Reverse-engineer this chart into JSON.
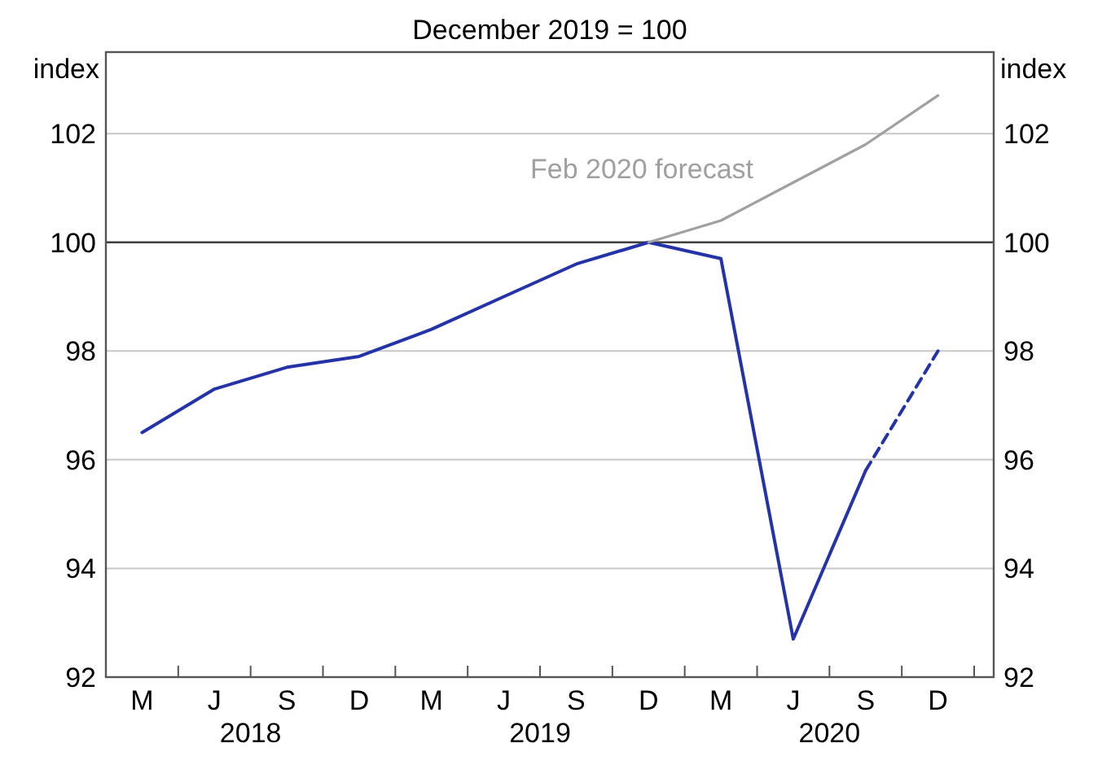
{
  "chart_data": {
    "type": "line",
    "subtitle": "December 2019 = 100",
    "ylabel": "index",
    "y2label": "index",
    "ylim": [
      92,
      103.5
    ],
    "yticks": [
      92,
      94,
      96,
      98,
      100,
      102
    ],
    "y2lim": [
      92,
      103.5
    ],
    "y2ticks": [
      92,
      94,
      96,
      98,
      100,
      102
    ],
    "categories": [
      "M",
      "J",
      "S",
      "D",
      "M",
      "J",
      "S",
      "D",
      "M",
      "J",
      "S",
      "D"
    ],
    "annotations": [
      "2018",
      "2019",
      "2020"
    ],
    "grid": "y",
    "ref_lines": [
      {
        "axis": "y",
        "value": 100,
        "color": "#404040"
      }
    ],
    "series": [
      {
        "color": "#2533a8",
        "line_style": "solid",
        "values": [
          96.5,
          97.3,
          97.7,
          97.9,
          98.4,
          99.0,
          99.6,
          100.0,
          99.7,
          92.7,
          95.8,
          null
        ]
      },
      {
        "color": "#2533a8",
        "line_style": "dashed",
        "values": [
          null,
          null,
          null,
          null,
          null,
          null,
          null,
          null,
          null,
          null,
          95.8,
          98.0
        ]
      },
      {
        "name": "Feb 2020 forecast",
        "color": "#a0a0a0",
        "line_style": "solid",
        "values": [
          null,
          null,
          null,
          null,
          null,
          null,
          null,
          100.0,
          100.4,
          101.1,
          101.8,
          102.7
        ]
      }
    ]
  }
}
